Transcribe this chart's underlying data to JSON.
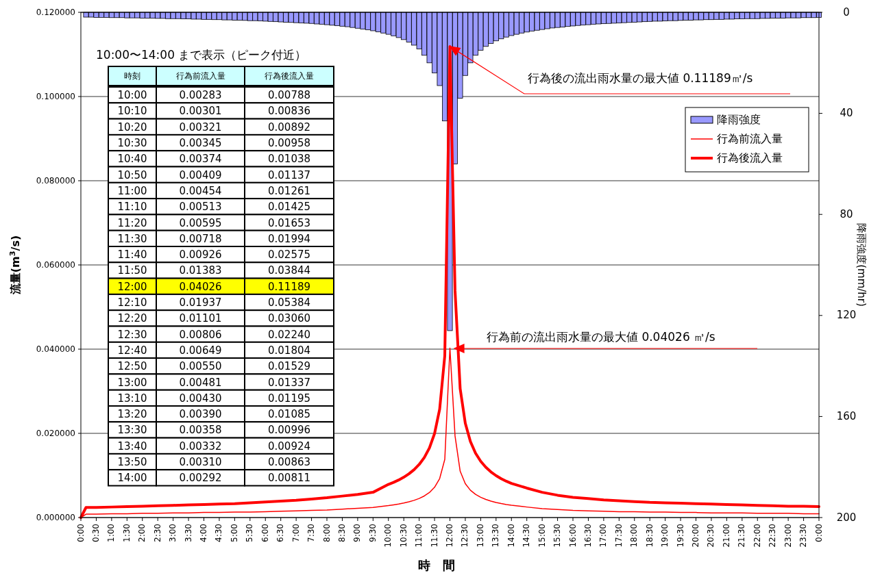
{
  "chart_data": [
    {
      "type": "line",
      "xlabel": "時　間",
      "ylabel": "流量(m$^{3}$/s)",
      "y2label": "降雨強度(mm/hr)",
      "x": [
        0,
        0.1667,
        0.5,
        1,
        1.5,
        2,
        2.5,
        3,
        3.5,
        4,
        4.5,
        5,
        5.5,
        6,
        6.5,
        7,
        7.5,
        8,
        8.5,
        9,
        9.5,
        10,
        10.1667,
        10.3333,
        10.5,
        10.6667,
        10.8333,
        11,
        11.1667,
        11.3333,
        11.5,
        11.6667,
        11.8333,
        12,
        12.1667,
        12.3333,
        12.5,
        12.6667,
        12.8333,
        13,
        13.1667,
        13.3333,
        13.5,
        13.6667,
        13.8333,
        14,
        14.5,
        15,
        15.5,
        16,
        16.5,
        17,
        17.5,
        18,
        18.5,
        19,
        19.5,
        20,
        20.5,
        21,
        21.5,
        22,
        22.5,
        23,
        23.5,
        24
      ],
      "series": [
        {
          "name": "降雨強度",
          "type": "bar",
          "axis": "y2",
          "color": "#9999ff",
          "x": [
            0.1667,
            0.3333,
            0.5,
            0.6667,
            0.8333,
            1,
            1.1667,
            1.3333,
            1.5,
            1.6667,
            1.8333,
            2,
            2.1667,
            2.3333,
            2.5,
            2.6667,
            2.8333,
            3,
            3.1667,
            3.3333,
            3.5,
            3.6667,
            3.8333,
            4,
            4.1667,
            4.3333,
            4.5,
            4.6667,
            4.8333,
            5,
            5.1667,
            5.3333,
            5.5,
            5.6667,
            5.8333,
            6,
            6.1667,
            6.3333,
            6.5,
            6.6667,
            6.8333,
            7,
            7.1667,
            7.3333,
            7.5,
            7.6667,
            7.8333,
            8,
            8.1667,
            8.3333,
            8.5,
            8.6667,
            8.8333,
            9,
            9.1667,
            9.3333,
            9.5,
            9.6667,
            9.8333,
            10,
            10.1667,
            10.3333,
            10.5,
            10.6667,
            10.8333,
            11,
            11.1667,
            11.3333,
            11.5,
            11.6667,
            11.8333,
            12,
            12.1667,
            12.3333,
            12.5,
            12.6667,
            12.8333,
            13,
            13.1667,
            13.3333,
            13.5,
            13.6667,
            13.8333,
            14,
            14.1667,
            14.3333,
            14.5,
            14.6667,
            14.8333,
            15,
            15.1667,
            15.3333,
            15.5,
            15.6667,
            15.8333,
            16,
            16.1667,
            16.3333,
            16.5,
            16.6667,
            16.8333,
            17,
            17.1667,
            17.3333,
            17.5,
            17.6667,
            17.8333,
            18,
            18.1667,
            18.3333,
            18.5,
            18.6667,
            18.8333,
            19,
            19.1667,
            19.3333,
            19.5,
            19.6667,
            19.8333,
            20,
            20.1667,
            20.3333,
            20.5,
            20.6667,
            20.8333,
            21,
            21.1667,
            21.3333,
            21.5,
            21.6667,
            21.8333,
            22,
            22.1667,
            22.3333,
            22.5,
            22.6667,
            22.8333,
            23,
            23.1667,
            23.3333,
            23.5,
            23.6667,
            23.8333,
            24
          ],
          "values": [
            1.9,
            1.9,
            2.0,
            2.0,
            2.0,
            2.1,
            2.1,
            2.1,
            2.2,
            2.2,
            2.2,
            2.3,
            2.3,
            2.3,
            2.4,
            2.4,
            2.5,
            2.5,
            2.5,
            2.6,
            2.6,
            2.7,
            2.7,
            2.8,
            2.8,
            2.9,
            2.9,
            3.0,
            3.0,
            3.1,
            3.1,
            3.2,
            3.3,
            3.3,
            3.4,
            3.5,
            3.6,
            3.7,
            3.8,
            3.9,
            4.0,
            4.1,
            4.2,
            4.3,
            4.4,
            4.6,
            4.7,
            4.9,
            5.1,
            5.3,
            5.5,
            5.7,
            6.0,
            6.3,
            6.6,
            6.9,
            7.3,
            7.7,
            8.2,
            8.7,
            9.3,
            10,
            10.8,
            11.8,
            13,
            14.5,
            17,
            20,
            24,
            29,
            43,
            126,
            60,
            34,
            25,
            20,
            17,
            15,
            13.5,
            12.3,
            11.3,
            10.5,
            9.8,
            9.2,
            8.7,
            8.2,
            7.8,
            7.4,
            7.1,
            6.8,
            6.5,
            6.2,
            6.0,
            5.8,
            5.6,
            5.4,
            5.2,
            5.0,
            4.9,
            4.7,
            4.6,
            4.5,
            4.4,
            4.3,
            4.2,
            4.1,
            4.0,
            3.9,
            3.8,
            3.7,
            3.6,
            3.5,
            3.5,
            3.4,
            3.3,
            3.3,
            3.2,
            3.1,
            3.1,
            3.0,
            3.0,
            2.9,
            2.9,
            2.8,
            2.8,
            2.7,
            2.7,
            2.6,
            2.6,
            2.5,
            2.5,
            2.5,
            2.4,
            2.4,
            2.3,
            2.3,
            2.3,
            2.2,
            2.2,
            2.2,
            2.1,
            2.1,
            2.1,
            2.0
          ]
        },
        {
          "name": "行為前流入量",
          "color": "#ff0000",
          "values": [
            0,
            0.0008,
            0.0008,
            0.0009,
            0.0009,
            0.001,
            0.001,
            0.0011,
            0.0011,
            0.0012,
            0.0012,
            0.0013,
            0.0013,
            0.0014,
            0.0015,
            0.0016,
            0.0017,
            0.0018,
            0.002,
            0.0022,
            0.0024,
            0.00283,
            0.00301,
            0.00321,
            0.00345,
            0.00374,
            0.00409,
            0.00454,
            0.00513,
            0.00595,
            0.00718,
            0.00926,
            0.01383,
            0.04026,
            0.01937,
            0.01101,
            0.00806,
            0.00649,
            0.0055,
            0.00481,
            0.0043,
            0.0039,
            0.00358,
            0.00332,
            0.0031,
            0.00292,
            0.0025,
            0.0021,
            0.0019,
            0.0017,
            0.0016,
            0.0015,
            0.0014,
            0.0014,
            0.0013,
            0.0013,
            0.0012,
            0.0012,
            0.0011,
            0.0011,
            0.0011,
            0.001,
            0.001,
            0.001,
            0.0009,
            0.0009
          ]
        },
        {
          "name": "行為後流入量",
          "color": "#ff0000",
          "values": [
            0,
            0.0024,
            0.0024,
            0.0025,
            0.0026,
            0.0027,
            0.0028,
            0.0029,
            0.003,
            0.0031,
            0.0032,
            0.0033,
            0.0035,
            0.0037,
            0.0039,
            0.0041,
            0.0044,
            0.0047,
            0.0051,
            0.0055,
            0.006,
            0.00788,
            0.00836,
            0.00892,
            0.00958,
            0.01038,
            0.01137,
            0.01261,
            0.01425,
            0.01653,
            0.01994,
            0.02575,
            0.03844,
            0.11189,
            0.05384,
            0.0306,
            0.0224,
            0.01804,
            0.01529,
            0.01337,
            0.01195,
            0.01085,
            0.00996,
            0.00924,
            0.00863,
            0.00811,
            0.007,
            0.006,
            0.0053,
            0.0048,
            0.0045,
            0.0042,
            0.004,
            0.0038,
            0.0036,
            0.0035,
            0.0034,
            0.0033,
            0.0032,
            0.0031,
            0.003,
            0.0029,
            0.0028,
            0.0027,
            0.0027,
            0.0026
          ]
        }
      ],
      "xlim": [
        0,
        24
      ],
      "xticks": [
        {
          "value": 0,
          "label": "0:00"
        },
        {
          "value": 0.5,
          "label": "0:30"
        },
        {
          "value": 1,
          "label": "1:00"
        },
        {
          "value": 1.5,
          "label": "1:30"
        },
        {
          "value": 2,
          "label": "2:00"
        },
        {
          "value": 2.5,
          "label": "2:30"
        },
        {
          "value": 3,
          "label": "3:00"
        },
        {
          "value": 3.5,
          "label": "3:30"
        },
        {
          "value": 4,
          "label": "4:00"
        },
        {
          "value": 4.5,
          "label": "4:30"
        },
        {
          "value": 5,
          "label": "5:00"
        },
        {
          "value": 5.5,
          "label": "5:30"
        },
        {
          "value": 6,
          "label": "6:00"
        },
        {
          "value": 6.5,
          "label": "6:30"
        },
        {
          "value": 7,
          "label": "7:00"
        },
        {
          "value": 7.5,
          "label": "7:30"
        },
        {
          "value": 8,
          "label": "8:00"
        },
        {
          "value": 8.5,
          "label": "8:30"
        },
        {
          "value": 9,
          "label": "9:00"
        },
        {
          "value": 9.5,
          "label": "9:30"
        },
        {
          "value": 10,
          "label": "10:00"
        },
        {
          "value": 10.5,
          "label": "10:30"
        },
        {
          "value": 11,
          "label": "11:00"
        },
        {
          "value": 11.5,
          "label": "11:30"
        },
        {
          "value": 12,
          "label": "12:00"
        },
        {
          "value": 12.5,
          "label": "12:30"
        },
        {
          "value": 13,
          "label": "13:00"
        },
        {
          "value": 13.5,
          "label": "13:30"
        },
        {
          "value": 14,
          "label": "14:00"
        },
        {
          "value": 14.5,
          "label": "14:30"
        },
        {
          "value": 15,
          "label": "15:00"
        },
        {
          "value": 15.5,
          "label": "15:30"
        },
        {
          "value": 16,
          "label": "16:00"
        },
        {
          "value": 16.5,
          "label": "16:30"
        },
        {
          "value": 17,
          "label": "17:00"
        },
        {
          "value": 17.5,
          "label": "17:30"
        },
        {
          "value": 18,
          "label": "18:00"
        },
        {
          "value": 18.5,
          "label": "18:30"
        },
        {
          "value": 19,
          "label": "19:00"
        },
        {
          "value": 19.5,
          "label": "19:30"
        },
        {
          "value": 20,
          "label": "20:00"
        },
        {
          "value": 20.5,
          "label": "20:30"
        },
        {
          "value": 21,
          "label": "21:00"
        },
        {
          "value": 21.5,
          "label": "21:30"
        },
        {
          "value": 22,
          "label": "22:00"
        },
        {
          "value": 22.5,
          "label": "22:30"
        },
        {
          "value": 23,
          "label": "23:00"
        },
        {
          "value": 23.5,
          "label": "23:30"
        },
        {
          "value": 24,
          "label": "0:00"
        }
      ],
      "ylim": [
        0,
        0.12
      ],
      "yticks": [
        {
          "value": 0,
          "label": "0.000000"
        },
        {
          "value": 0.02,
          "label": "0.020000"
        },
        {
          "value": 0.04,
          "label": "0.040000"
        },
        {
          "value": 0.06,
          "label": "0.060000"
        },
        {
          "value": 0.08,
          "label": "0.080000"
        },
        {
          "value": 0.1,
          "label": "0.100000"
        },
        {
          "value": 0.12,
          "label": "0.120000"
        }
      ],
      "y2lim": [
        200,
        0
      ],
      "y2ticks": [
        0,
        40,
        80,
        120,
        160,
        200
      ],
      "grid": "y",
      "legend": "top right",
      "marker": "none",
      "line_style": "solid",
      "annotations": [
        {
          "text": "行為後の流出雨水量の最大値 0.11189㎥/s",
          "x": 12,
          "y": 0.11189
        },
        "行為前の流出雨水量の最大値 0.04026 ㎥/s"
      ]
    },
    {
      "type": "heatmap",
      "data_labels": true,
      "title": "10:00〜14:00 まで表示（ピーク付近）",
      "ylabel": "時刻",
      "categories": [
        "行為前流入量",
        "行為後流入量"
      ],
      "y_categories": [
        "10:00",
        "10:10",
        "10:20",
        "10:30",
        "10:40",
        "10:50",
        "11:00",
        "11:10",
        "11:20",
        "11:30",
        "11:40",
        "11:50",
        "12:00",
        "12:10",
        "12:20",
        "12:30",
        "12:40",
        "12:50",
        "13:00",
        "13:10",
        "13:20",
        "13:30",
        "13:40",
        "13:50",
        "14:00"
      ],
      "cells": [
        [
          0.00283,
          0.00788
        ],
        [
          0.00301,
          0.00836
        ],
        [
          0.00321,
          0.00892
        ],
        [
          0.00345,
          0.00958
        ],
        [
          0.00374,
          0.01038
        ],
        [
          0.00409,
          0.01137
        ],
        [
          0.00454,
          0.01261
        ],
        [
          0.00513,
          0.01425
        ],
        [
          0.00595,
          0.01653
        ],
        [
          0.00718,
          0.01994
        ],
        [
          0.00926,
          0.02575
        ],
        [
          0.01383,
          0.03844
        ],
        [
          0.04026,
          0.11189
        ],
        [
          0.01937,
          0.05384
        ],
        [
          0.01101,
          0.0306
        ],
        [
          0.00806,
          0.0224
        ],
        [
          0.00649,
          0.01804
        ],
        [
          0.0055,
          0.01529
        ],
        [
          0.00481,
          0.01337
        ],
        [
          0.0043,
          0.01195
        ],
        [
          0.0039,
          0.01085
        ],
        [
          0.00358,
          0.00996
        ],
        [
          0.00332,
          0.00924
        ],
        [
          0.0031,
          0.00863
        ],
        [
          0.00292,
          0.00811
        ]
      ],
      "cell_labels": [
        [
          "0.00283",
          "0.00788"
        ],
        [
          "0.00301",
          "0.00836"
        ],
        [
          "0.00321",
          "0.00892"
        ],
        [
          "0.00345",
          "0.00958"
        ],
        [
          "0.00374",
          "0.01038"
        ],
        [
          "0.00409",
          "0.01137"
        ],
        [
          "0.00454",
          "0.01261"
        ],
        [
          "0.00513",
          "0.01425"
        ],
        [
          "0.00595",
          "0.01653"
        ],
        [
          "0.00718",
          "0.01994"
        ],
        [
          "0.00926",
          "0.02575"
        ],
        [
          "0.01383",
          "0.03844"
        ],
        [
          "0.04026",
          "0.11189"
        ],
        [
          "0.01937",
          "0.05384"
        ],
        [
          "0.01101",
          "0.03060"
        ],
        [
          "0.00806",
          "0.02240"
        ],
        [
          "0.00649",
          "0.01804"
        ],
        [
          "0.00550",
          "0.01529"
        ],
        [
          "0.00481",
          "0.01337"
        ],
        [
          "0.00430",
          "0.01195"
        ],
        [
          "0.00390",
          "0.01085"
        ],
        [
          "0.00358",
          "0.00996"
        ],
        [
          "0.00332",
          "0.00924"
        ],
        [
          "0.00310",
          "0.00863"
        ],
        [
          "0.00292",
          "0.00811"
        ]
      ]
    }
  ]
}
